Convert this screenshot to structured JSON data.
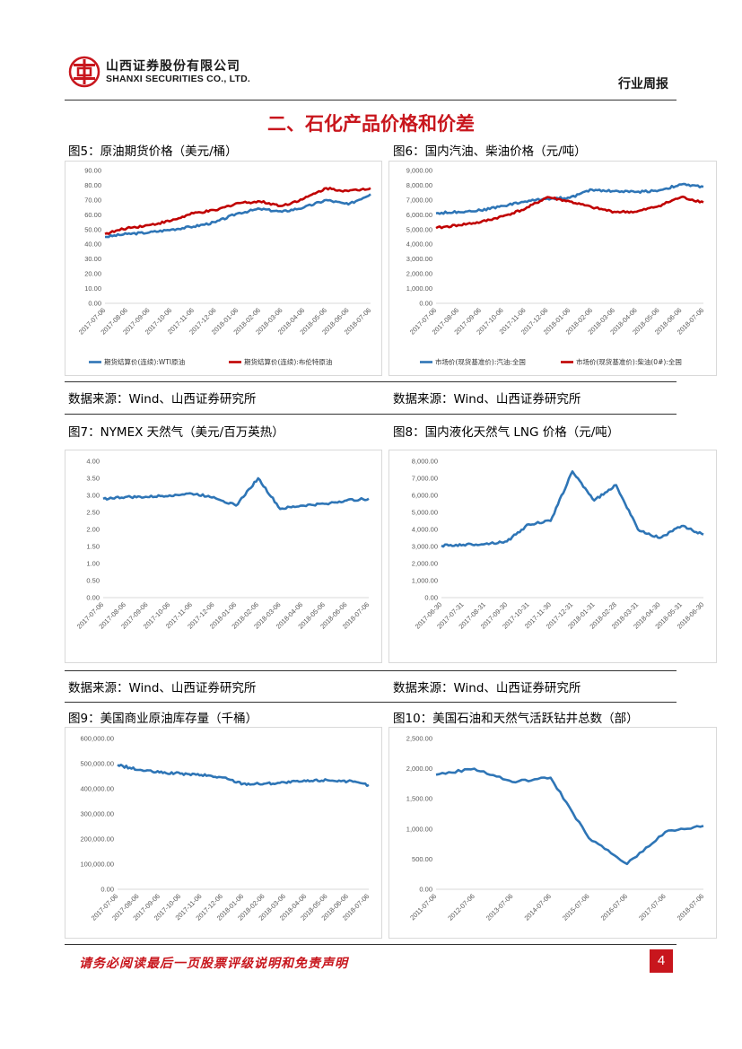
{
  "header": {
    "company_cn": "山西证券股份有限公司",
    "company_en": "SHANXI SECURITIES CO., LTD.",
    "report_type": "行业周报",
    "colors": {
      "accent": "#c8161d"
    }
  },
  "section_title": "二、石化产品价格和价差",
  "figures": {
    "fig5": {
      "title": "图5：原油期货价格（美元/桶）",
      "source": "数据来源：Wind、山西证券研究所"
    },
    "fig6": {
      "title": "图6：国内汽油、柴油价格（元/吨）",
      "source": "数据来源：Wind、山西证券研究所"
    },
    "fig7": {
      "title": "图7：NYMEX 天然气（美元/百万英热）",
      "source": "数据来源：Wind、山西证券研究所"
    },
    "fig8": {
      "title": "图8：国内液化天然气 LNG 价格（元/吨）",
      "source": "数据来源：Wind、山西证券研究所"
    },
    "fig9": {
      "title": "图9：美国商业原油库存量（千桶）"
    },
    "fig10": {
      "title": "图10：美国石油和天然气活跃钻井总数（部）"
    }
  },
  "footer": {
    "disclaimer": "请务必阅读最后一页股票评级说明和免责声明",
    "page_number": "4"
  },
  "chart_data": [
    {
      "id": "fig5",
      "type": "line",
      "x_ticks": [
        "2017-07-06",
        "2017-08-06",
        "2017-09-06",
        "2017-10-06",
        "2017-11-06",
        "2017-12-06",
        "2018-01-06",
        "2018-02-06",
        "2018-03-06",
        "2018-04-06",
        "2018-05-06",
        "2018-06-06",
        "2018-07-06"
      ],
      "y_ticks": [
        "0.00",
        "10.00",
        "20.00",
        "30.00",
        "40.00",
        "50.00",
        "60.00",
        "70.00",
        "80.00",
        "90.00"
      ],
      "ylim": [
        0,
        90
      ],
      "series": [
        {
          "name": "期货结算价(连续):WTI原油",
          "color": "#2e75b6",
          "values": [
            45,
            47,
            48,
            50,
            52,
            55,
            61,
            64,
            62,
            65,
            70,
            67,
            74
          ]
        },
        {
          "name": "期货结算价(连续):布伦特原油",
          "color": "#c00000",
          "values": [
            47,
            51,
            53,
            56,
            61,
            63,
            68,
            69,
            66,
            71,
            78,
            76,
            78
          ]
        }
      ],
      "legend": "bottom"
    },
    {
      "id": "fig6",
      "type": "line",
      "x_ticks": [
        "2017-07-06",
        "2017-08-06",
        "2017-09-06",
        "2017-10-06",
        "2017-11-06",
        "2017-12-06",
        "2018-01-06",
        "2018-02-06",
        "2018-03-06",
        "2018-04-06",
        "2018-05-06",
        "2018-06-06",
        "2018-07-06"
      ],
      "y_ticks": [
        "0.00",
        "1,000.00",
        "2,000.00",
        "3,000.00",
        "4,000.00",
        "5,000.00",
        "6,000.00",
        "7,000.00",
        "8,000.00",
        "9,000.00"
      ],
      "ylim": [
        0,
        9000
      ],
      "series": [
        {
          "name": "市场价(现货基准价):汽油:全国",
          "color": "#2e75b6",
          "values": [
            6100,
            6200,
            6300,
            6600,
            6900,
            7100,
            7150,
            7700,
            7600,
            7550,
            7650,
            8050,
            7900
          ]
        },
        {
          "name": "市场价(现货基准价):柴油(0#):全国",
          "color": "#c00000",
          "values": [
            5100,
            5300,
            5500,
            5900,
            6400,
            7200,
            6900,
            6500,
            6200,
            6200,
            6600,
            7200,
            6850
          ]
        }
      ],
      "legend": "bottom"
    },
    {
      "id": "fig7",
      "type": "line",
      "x_ticks": [
        "2017-07-06",
        "2017-08-06",
        "2017-09-06",
        "2017-10-06",
        "2017-11-06",
        "2017-12-06",
        "2018-01-06",
        "2018-02-06",
        "2018-03-06",
        "2018-04-06",
        "2018-05-06",
        "2018-06-06",
        "2018-07-06"
      ],
      "y_ticks": [
        "0.00",
        "0.50",
        "1.00",
        "1.50",
        "2.00",
        "2.50",
        "3.00",
        "3.50",
        "4.00"
      ],
      "ylim": [
        0,
        4
      ],
      "series": [
        {
          "name": "",
          "color": "#2e75b6",
          "values": [
            2.9,
            2.95,
            2.95,
            3.0,
            3.05,
            2.95,
            2.7,
            3.5,
            2.6,
            2.7,
            2.75,
            2.85,
            2.9
          ]
        }
      ]
    },
    {
      "id": "fig8",
      "type": "line",
      "x_ticks": [
        "2017-06-30",
        "2017-07-31",
        "2017-08-31",
        "2017-09-30",
        "2017-10-31",
        "2017-11-30",
        "2017-12-31",
        "2018-01-31",
        "2018-02-28",
        "2018-03-31",
        "2018-04-30",
        "2018-05-31",
        "2018-06-30"
      ],
      "y_ticks": [
        "0.00",
        "1,000.00",
        "2,000.00",
        "3,000.00",
        "4,000.00",
        "5,000.00",
        "6,000.00",
        "7,000.00",
        "8,000.00"
      ],
      "ylim": [
        0,
        8000
      ],
      "series": [
        {
          "name": "",
          "color": "#2e75b6",
          "values": [
            3050,
            3100,
            3150,
            3300,
            4300,
            4500,
            7400,
            5700,
            6600,
            4000,
            3500,
            4200,
            3700
          ]
        }
      ]
    },
    {
      "id": "fig9",
      "type": "line",
      "x_ticks": [
        "2017-07-06",
        "2017-08-06",
        "2017-09-06",
        "2017-10-06",
        "2017-11-06",
        "2017-12-06",
        "2018-01-06",
        "2018-02-06",
        "2018-03-06",
        "2018-04-06",
        "2018-05-06",
        "2018-06-06",
        "2018-07-06"
      ],
      "y_ticks": [
        "0.00",
        "100,000.00",
        "200,000.00",
        "300,000.00",
        "400,000.00",
        "500,000.00",
        "600,000.00"
      ],
      "ylim": [
        0,
        600000
      ],
      "series": [
        {
          "name": "",
          "color": "#2e75b6",
          "values": [
            495000,
            475000,
            465000,
            460000,
            455000,
            445000,
            420000,
            420000,
            425000,
            430000,
            435000,
            430000,
            415000
          ]
        }
      ]
    },
    {
      "id": "fig10",
      "type": "line",
      "x_ticks": [
        "2011-07-06",
        "2012-07-06",
        "2013-07-06",
        "2014-07-06",
        "2015-07-06",
        "2016-07-06",
        "2017-07-06",
        "2018-07-06"
      ],
      "y_ticks": [
        "0.00",
        "500.00",
        "1,000.00",
        "1,500.00",
        "2,000.00",
        "2,500.00"
      ],
      "ylim": [
        0,
        2500
      ],
      "series": [
        {
          "name": "",
          "color": "#2e75b6",
          "values": [
            1900,
            2000,
            1780,
            1850,
            850,
            420,
            950,
            1050
          ]
        }
      ]
    }
  ]
}
